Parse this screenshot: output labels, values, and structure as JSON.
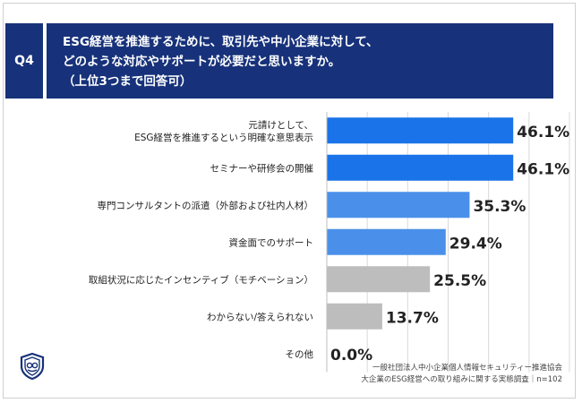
{
  "header": {
    "question_label": "Q4",
    "title_lines": [
      "ESG経営を推進するために、取引先や中小企業に対して、",
      "どのような対応やサポートが必要だと思いますか。",
      "（上位3つまで回答可）"
    ]
  },
  "chart_data": {
    "type": "bar",
    "orientation": "horizontal",
    "categories": [
      [
        "元請けとして、",
        "ESG経営を推進するという明確な意思表示"
      ],
      [
        "セミナーや研修会の開催"
      ],
      [
        "専門コンサルタントの派遣（外部および社内人材）"
      ],
      [
        "資金面でのサポート"
      ],
      [
        "取組状況に応じたインセンティブ（モチベーション）"
      ],
      [
        "わからない/答えられない"
      ],
      [
        "その他"
      ]
    ],
    "values": [
      46.1,
      46.1,
      35.3,
      29.4,
      25.5,
      13.7,
      0.0
    ],
    "value_labels": [
      "46.1%",
      "46.1%",
      "35.3%",
      "29.4%",
      "25.5%",
      "13.7%",
      "0.0%"
    ],
    "bar_colors": [
      "#1a73e8",
      "#1a73e8",
      "#4a90ea",
      "#4a90ea",
      "#bdbdbd",
      "#bdbdbd",
      "#bdbdbd"
    ],
    "xlim": [
      0,
      60
    ],
    "grid": true,
    "gridline_color": "#d9d9d9"
  },
  "footer": {
    "source_line1": "一般社団法人中小企業個人情報セキュリティー推進協会",
    "source_line2": "大企業のESG経営への取り組みに関する実態調査｜n=102"
  },
  "logo": {
    "icon": "shield-logo-icon",
    "color": "#17327a"
  }
}
